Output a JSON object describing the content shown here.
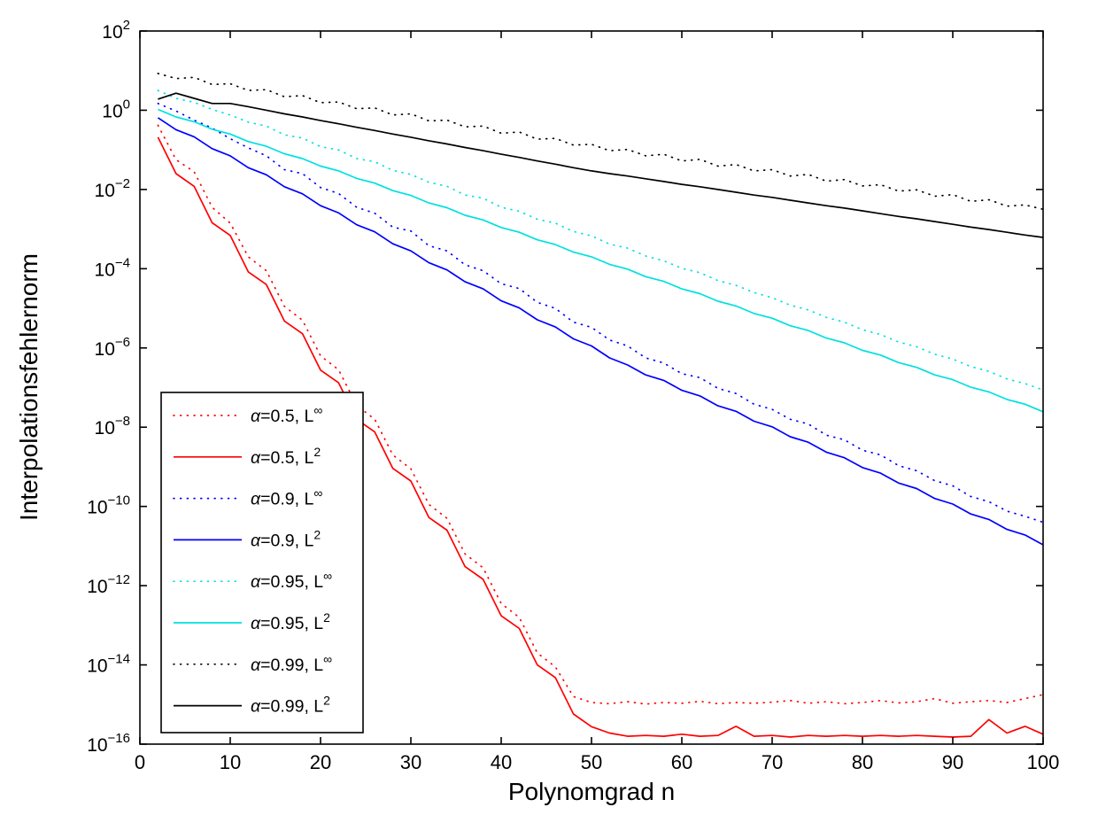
{
  "figure": {
    "background": "#ffffff",
    "axis_color": "#000000"
  },
  "chart_data": {
    "type": "line",
    "title": "",
    "xlabel": "Polynomgrad n",
    "ylabel": "Interpolationsfehlernorm",
    "grid": false,
    "legend_position": "lower-left-inside",
    "x_range": [
      0,
      100
    ],
    "x_ticks": [
      0,
      10,
      20,
      30,
      40,
      50,
      60,
      70,
      80,
      90,
      100
    ],
    "y_scale": "log10",
    "ylim_exponents": [
      -16,
      2
    ],
    "y_tick_exponents": [
      2,
      0,
      -2,
      -4,
      -6,
      -8,
      -10,
      -12,
      -14,
      -16
    ],
    "y_tick_mantissa": "10",
    "x": [
      2,
      4,
      6,
      8,
      10,
      12,
      14,
      16,
      18,
      20,
      22,
      24,
      26,
      28,
      30,
      32,
      34,
      36,
      38,
      40,
      42,
      44,
      46,
      48,
      50,
      52,
      54,
      56,
      58,
      60,
      62,
      64,
      66,
      68,
      70,
      72,
      74,
      76,
      78,
      80,
      82,
      84,
      86,
      88,
      90,
      92,
      94,
      96,
      98,
      100
    ],
    "series": [
      {
        "name": "α=0.5, L∞",
        "label_base": "α=0.5, L",
        "label_sup": "∞",
        "color": "#ff0000",
        "style": "dotted",
        "log10_values": [
          -0.38,
          -1.25,
          -1.55,
          -2.45,
          -2.85,
          -3.7,
          -4.05,
          -4.95,
          -5.3,
          -6.2,
          -6.55,
          -7.45,
          -7.8,
          -8.7,
          -9.05,
          -9.95,
          -10.3,
          -11.2,
          -11.55,
          -12.45,
          -12.8,
          -13.7,
          -14.05,
          -14.8,
          -14.95,
          -14.98,
          -14.93,
          -14.99,
          -14.95,
          -14.97,
          -14.92,
          -14.98,
          -14.95,
          -14.97,
          -14.94,
          -14.9,
          -14.97,
          -14.93,
          -14.98,
          -14.95,
          -14.9,
          -14.96,
          -14.93,
          -14.85,
          -14.97,
          -14.93,
          -14.9,
          -14.95,
          -14.85,
          -14.75
        ]
      },
      {
        "name": "α=0.5, L2",
        "label_base": "α=0.5, L",
        "label_sup": "2",
        "color": "#ff0000",
        "style": "solid",
        "log10_values": [
          -0.68,
          -1.6,
          -1.92,
          -2.84,
          -3.16,
          -4.08,
          -4.4,
          -5.32,
          -5.64,
          -6.56,
          -6.88,
          -7.8,
          -8.12,
          -9.04,
          -9.36,
          -10.28,
          -10.6,
          -11.52,
          -11.84,
          -12.76,
          -13.08,
          -14.0,
          -14.32,
          -15.24,
          -15.56,
          -15.72,
          -15.8,
          -15.78,
          -15.8,
          -15.75,
          -15.8,
          -15.78,
          -15.55,
          -15.8,
          -15.78,
          -15.82,
          -15.78,
          -15.8,
          -15.78,
          -15.8,
          -15.78,
          -15.8,
          -15.78,
          -15.8,
          -15.82,
          -15.8,
          -15.38,
          -15.72,
          -15.55,
          -15.75
        ]
      },
      {
        "name": "α=0.9, L∞",
        "label_base": "α=0.9, L",
        "label_sup": "∞",
        "color": "#0000ff",
        "style": "dotted",
        "log10_values": [
          0.17,
          -0.02,
          -0.25,
          -0.45,
          -0.72,
          -0.95,
          -1.15,
          -1.5,
          -1.6,
          -1.95,
          -2.1,
          -2.45,
          -2.6,
          -2.95,
          -3.05,
          -3.42,
          -3.55,
          -3.9,
          -4.05,
          -4.38,
          -4.5,
          -4.85,
          -5.0,
          -5.35,
          -5.48,
          -5.8,
          -5.95,
          -6.25,
          -6.38,
          -6.65,
          -6.75,
          -7.02,
          -7.15,
          -7.42,
          -7.55,
          -7.8,
          -7.92,
          -8.2,
          -8.32,
          -8.58,
          -8.7,
          -8.97,
          -9.1,
          -9.35,
          -9.48,
          -9.75,
          -9.88,
          -10.12,
          -10.25,
          -10.4
        ]
      },
      {
        "name": "α=0.9, L2",
        "label_base": "α=0.9, L",
        "label_sup": "2",
        "color": "#0000ff",
        "style": "solid",
        "log10_values": [
          -0.19,
          -0.49,
          -0.67,
          -0.97,
          -1.15,
          -1.45,
          -1.63,
          -1.93,
          -2.11,
          -2.41,
          -2.59,
          -2.89,
          -3.07,
          -3.37,
          -3.55,
          -3.85,
          -4.03,
          -4.33,
          -4.51,
          -4.81,
          -4.99,
          -5.29,
          -5.47,
          -5.77,
          -5.95,
          -6.25,
          -6.43,
          -6.68,
          -6.82,
          -7.07,
          -7.21,
          -7.46,
          -7.6,
          -7.85,
          -7.99,
          -8.24,
          -8.38,
          -8.63,
          -8.77,
          -9.02,
          -9.16,
          -9.41,
          -9.55,
          -9.8,
          -9.94,
          -10.19,
          -10.33,
          -10.58,
          -10.72,
          -10.97
        ]
      },
      {
        "name": "α=0.95, L∞",
        "label_base": "α=0.95, L",
        "label_sup": "∞",
        "color": "#00e0e0",
        "style": "dotted",
        "log10_values": [
          0.5,
          0.3,
          0.2,
          0.02,
          -0.12,
          -0.3,
          -0.4,
          -0.62,
          -0.7,
          -0.92,
          -1.0,
          -1.22,
          -1.3,
          -1.52,
          -1.62,
          -1.82,
          -1.92,
          -2.14,
          -2.22,
          -2.45,
          -2.55,
          -2.75,
          -2.85,
          -3.06,
          -3.17,
          -3.38,
          -3.48,
          -3.68,
          -3.8,
          -3.99,
          -4.1,
          -4.3,
          -4.42,
          -4.6,
          -4.73,
          -4.92,
          -5.04,
          -5.23,
          -5.35,
          -5.54,
          -5.66,
          -5.85,
          -5.97,
          -6.16,
          -6.28,
          -6.47,
          -6.59,
          -6.78,
          -6.9,
          -7.06
        ]
      },
      {
        "name": "α=0.95, L2",
        "label_base": "α=0.95, L",
        "label_sup": "2",
        "color": "#00e0e0",
        "style": "solid",
        "log10_values": [
          0.02,
          -0.17,
          -0.29,
          -0.48,
          -0.6,
          -0.79,
          -0.91,
          -1.1,
          -1.22,
          -1.41,
          -1.53,
          -1.72,
          -1.84,
          -2.03,
          -2.15,
          -2.34,
          -2.46,
          -2.65,
          -2.77,
          -2.96,
          -3.08,
          -3.27,
          -3.39,
          -3.58,
          -3.7,
          -3.89,
          -4.01,
          -4.2,
          -4.32,
          -4.51,
          -4.63,
          -4.82,
          -4.94,
          -5.13,
          -5.25,
          -5.44,
          -5.56,
          -5.75,
          -5.87,
          -6.06,
          -6.18,
          -6.37,
          -6.49,
          -6.68,
          -6.8,
          -6.99,
          -7.11,
          -7.3,
          -7.42,
          -7.61
        ]
      },
      {
        "name": "α=0.99, L∞",
        "label_base": "α=0.99, L",
        "label_sup": "∞",
        "color": "#000000",
        "style": "dotted",
        "log10_values": [
          0.93,
          0.8,
          0.83,
          0.65,
          0.67,
          0.5,
          0.52,
          0.34,
          0.37,
          0.19,
          0.21,
          0.04,
          0.06,
          -0.12,
          -0.09,
          -0.27,
          -0.25,
          -0.42,
          -0.4,
          -0.58,
          -0.55,
          -0.73,
          -0.71,
          -0.88,
          -0.86,
          -1.02,
          -0.99,
          -1.15,
          -1.11,
          -1.28,
          -1.24,
          -1.41,
          -1.37,
          -1.53,
          -1.5,
          -1.66,
          -1.62,
          -1.79,
          -1.75,
          -1.91,
          -1.88,
          -2.04,
          -2.01,
          -2.17,
          -2.13,
          -2.3,
          -2.26,
          -2.42,
          -2.39,
          -2.5
        ]
      },
      {
        "name": "α=0.99, L2",
        "label_base": "α=0.99, L",
        "label_sup": "2",
        "color": "#000000",
        "style": "solid",
        "log10_values": [
          0.28,
          0.43,
          0.3,
          0.17,
          0.17,
          0.09,
          0.0,
          -0.09,
          -0.17,
          -0.26,
          -0.34,
          -0.43,
          -0.51,
          -0.6,
          -0.68,
          -0.77,
          -0.85,
          -0.94,
          -1.02,
          -1.11,
          -1.19,
          -1.28,
          -1.36,
          -1.45,
          -1.53,
          -1.6,
          -1.66,
          -1.73,
          -1.8,
          -1.87,
          -1.93,
          -2.0,
          -2.07,
          -2.14,
          -2.2,
          -2.27,
          -2.34,
          -2.41,
          -2.47,
          -2.54,
          -2.61,
          -2.68,
          -2.74,
          -2.81,
          -2.88,
          -2.95,
          -3.01,
          -3.08,
          -3.15,
          -3.21
        ]
      }
    ]
  }
}
